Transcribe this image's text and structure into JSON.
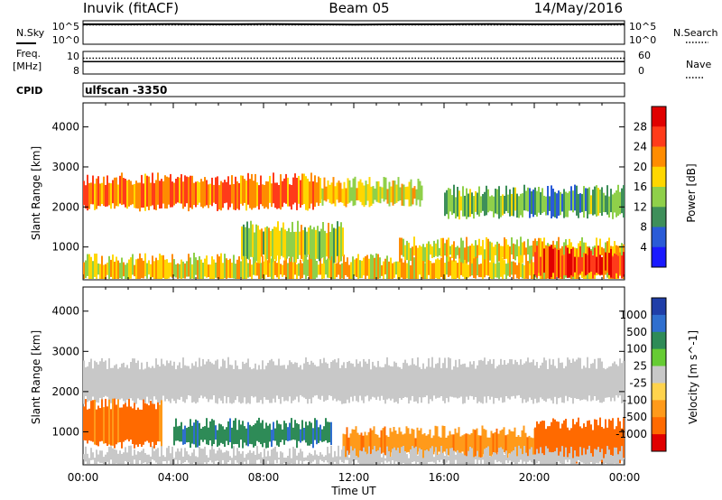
{
  "header": {
    "station": "Inuvik (fitACF)",
    "beam": "Beam 05",
    "date": "14/May/2016"
  },
  "chart_data": [
    {
      "type": "line",
      "panel": "sky-noise",
      "left_label": "N.Sky",
      "right_label": "N.Search",
      "left_ticks": [
        "10^5",
        "10^0"
      ],
      "right_ticks": [
        "10^5",
        "10^0"
      ],
      "x": [
        0,
        2,
        4,
        6,
        8,
        10,
        12,
        14,
        16,
        18,
        20,
        22,
        24
      ],
      "series": [
        {
          "values": [
            0.85,
            0.85,
            0.86,
            0.85,
            0.86,
            0.85,
            0.84,
            0.85,
            0.85,
            0.86,
            0.85,
            0.85,
            0.86
          ]
        },
        {
          "values": [
            0.82,
            0.82,
            0.82,
            0.82,
            0.82,
            0.82,
            0.82,
            0.82,
            0.82,
            0.82,
            0.82,
            0.82,
            0.82
          ]
        }
      ]
    },
    {
      "type": "line",
      "panel": "frequency-nave",
      "left_label_lines": [
        "Freq.",
        "[MHz]"
      ],
      "right_label": "Nave",
      "left_ticks": [
        "10",
        "8"
      ],
      "right_ticks": [
        "60",
        "0"
      ],
      "x": [
        0,
        24
      ],
      "series": [
        {
          "values": [
            0.55,
            0.55
          ]
        },
        {
          "values": [
            0.7,
            0.7
          ]
        }
      ]
    },
    {
      "type": "text",
      "panel": "cpid",
      "label": "CPID",
      "value": "ulfscan -3350"
    },
    {
      "type": "heatmap",
      "panel": "power",
      "ylabel": "Slant Range [km]",
      "yticks": [
        1000,
        2000,
        3000,
        4000
      ],
      "ylim": [
        180,
        4600
      ],
      "xlim": [
        0,
        24
      ],
      "colorbar_label": "Power [dB]",
      "colorbar_ticks": [
        "28",
        "24",
        "20",
        "16",
        "12",
        "8",
        "4"
      ],
      "colorbar_colors": [
        "#1a1aff",
        "#2a5bd7",
        "#3e8f5a",
        "#8fd04a",
        "#ffd700",
        "#ff8c00",
        "#ff3b1a",
        "#e00000"
      ],
      "bands": [
        {
          "start": 0.0,
          "end": 10.5,
          "range": [
            2000,
            2700
          ],
          "level": 0.75
        },
        {
          "start": 10.5,
          "end": 15.0,
          "range": [
            2100,
            2600
          ],
          "level": 0.55
        },
        {
          "start": 16.0,
          "end": 24.0,
          "range": [
            1800,
            2400
          ],
          "level": 0.35
        },
        {
          "start": 0.0,
          "end": 24.0,
          "range": [
            200,
            700
          ],
          "level": 0.6
        },
        {
          "start": 7.0,
          "end": 11.5,
          "range": [
            700,
            1500
          ],
          "level": 0.5
        },
        {
          "start": 14.0,
          "end": 24.0,
          "range": [
            700,
            1100
          ],
          "level": 0.55
        },
        {
          "start": 20.0,
          "end": 24.0,
          "range": [
            300,
            900
          ],
          "level": 0.85
        }
      ]
    },
    {
      "type": "heatmap",
      "panel": "velocity",
      "xlabel": "Time UT",
      "ylabel": "Slant Range [km]",
      "xticks": [
        "00:00",
        "04:00",
        "08:00",
        "12:00",
        "16:00",
        "20:00",
        "00:00"
      ],
      "yticks": [
        1000,
        2000,
        3000,
        4000
      ],
      "ylim": [
        180,
        4600
      ],
      "xlim": [
        0,
        24
      ],
      "colorbar_label": "Velocity [m s^-1]",
      "colorbar_ticks": [
        "1000",
        "500",
        "100",
        "25",
        "-25",
        "-100",
        "-500",
        "-1000"
      ],
      "colorbar_colors": [
        "#1f3ea8",
        "#2f6fcf",
        "#2e8b57",
        "#66cc33",
        "#c8c8c8",
        "#ffd34d",
        "#ff9a1a",
        "#ff6a00",
        "#e00000"
      ],
      "bands": [
        {
          "start": 0.0,
          "end": 24.0,
          "range": [
            1800,
            2700
          ],
          "level": 0.0
        },
        {
          "start": 0.0,
          "end": 3.5,
          "range": [
            700,
            1700
          ],
          "level": -0.7
        },
        {
          "start": 4.0,
          "end": 11.0,
          "range": [
            700,
            1200
          ],
          "level": 0.55
        },
        {
          "start": 11.5,
          "end": 20.0,
          "range": [
            400,
            1000
          ],
          "level": -0.55
        },
        {
          "start": 20.0,
          "end": 24.0,
          "range": [
            300,
            1200
          ],
          "level": -0.75
        },
        {
          "start": 0.0,
          "end": 24.0,
          "range": [
            200,
            500
          ],
          "level": 0.0
        }
      ]
    }
  ]
}
